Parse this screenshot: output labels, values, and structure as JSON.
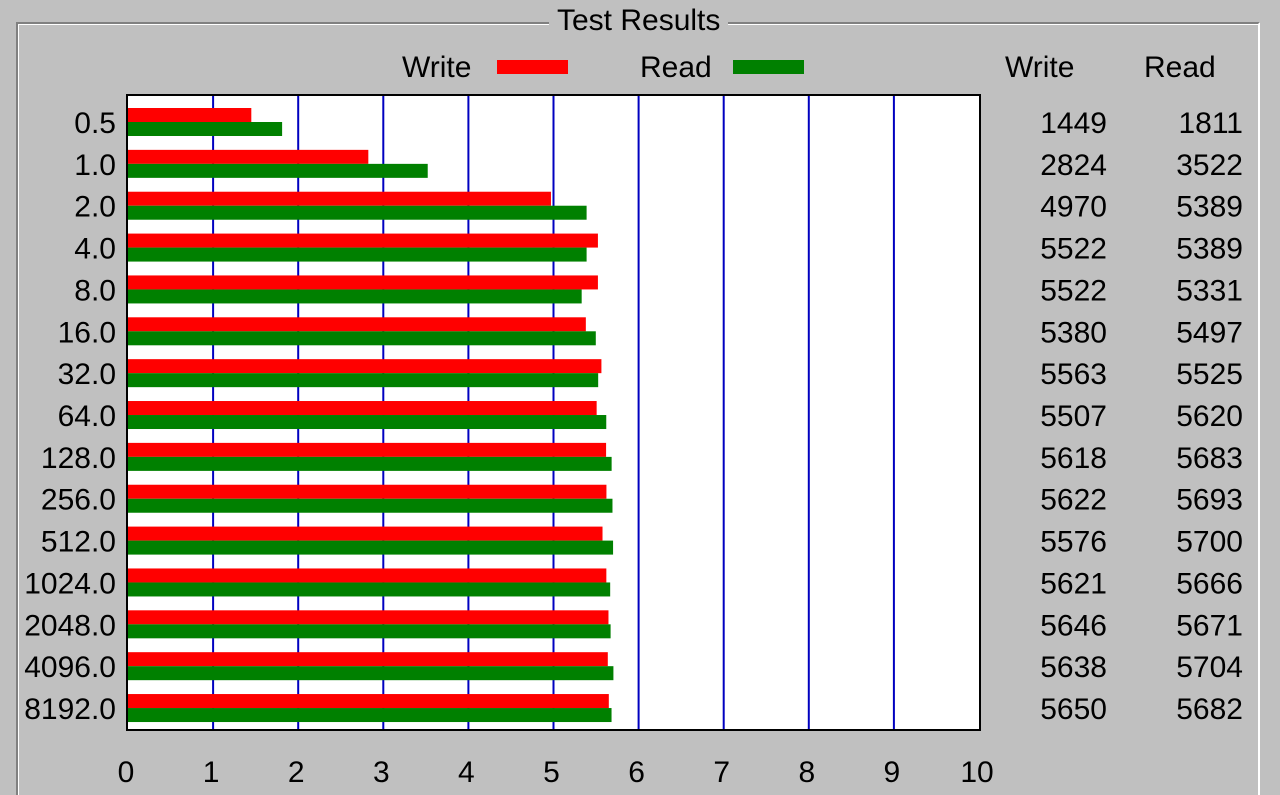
{
  "window": {
    "group_title": "Test Results"
  },
  "legend": {
    "write_label": "Write",
    "read_label": "Read"
  },
  "columns": {
    "write_header": "Write",
    "read_header": "Read"
  },
  "colors": {
    "write": "#ff0000",
    "read": "#008000",
    "gridline": "#0000c0",
    "background": "#c0c0c0",
    "plot_background": "#ffffff"
  },
  "chart_data": {
    "type": "bar",
    "orientation": "horizontal",
    "title": "Test Results",
    "xlabel": "",
    "ylabel": "",
    "xlim": [
      0,
      10
    ],
    "x_ticks": [
      "0",
      "1",
      "2",
      "3",
      "4",
      "5",
      "6",
      "7",
      "8",
      "9",
      "10"
    ],
    "grid": true,
    "legend_position": "top",
    "categories": [
      "0.5",
      "1.0",
      "2.0",
      "4.0",
      "8.0",
      "16.0",
      "32.0",
      "64.0",
      "128.0",
      "256.0",
      "512.0",
      "1024.0",
      "2048.0",
      "4096.0",
      "8192.0"
    ],
    "series": [
      {
        "name": "Write",
        "values": [
          1449,
          2824,
          4970,
          5522,
          5522,
          5380,
          5563,
          5507,
          5618,
          5622,
          5576,
          5621,
          5646,
          5638,
          5650
        ]
      },
      {
        "name": "Read",
        "values": [
          1811,
          3522,
          5389,
          5389,
          5331,
          5497,
          5525,
          5620,
          5683,
          5693,
          5700,
          5666,
          5671,
          5704,
          5682
        ]
      }
    ]
  }
}
